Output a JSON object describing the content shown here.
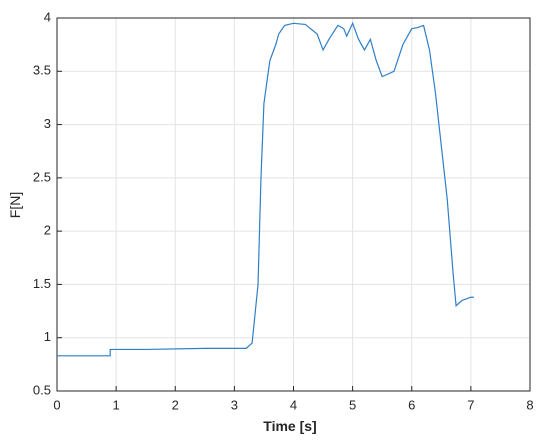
{
  "chart_data": {
    "type": "line",
    "xlabel": "Time [s]",
    "ylabel": "F[N]",
    "xlim": [
      0,
      8
    ],
    "ylim": [
      0.5,
      4
    ],
    "xticks": [
      0,
      1,
      2,
      3,
      4,
      5,
      6,
      7,
      8
    ],
    "yticks": [
      0.5,
      1,
      1.5,
      2,
      2.5,
      3,
      3.5,
      4
    ],
    "grid": true,
    "series": [
      {
        "color": "#2f7fc8",
        "x": [
          0,
          0.9,
          0.9,
          1.5,
          2.5,
          3.2,
          3.3,
          3.4,
          3.45,
          3.5,
          3.6,
          3.7,
          3.75,
          3.85,
          4.0,
          4.2,
          4.4,
          4.5,
          4.6,
          4.75,
          4.85,
          4.9,
          5.0,
          5.1,
          5.2,
          5.3,
          5.4,
          5.5,
          5.7,
          5.85,
          6.0,
          6.1,
          6.2,
          6.3,
          6.4,
          6.5,
          6.6,
          6.7,
          6.75,
          6.85,
          7.0,
          7.05
        ],
        "values": [
          0.83,
          0.83,
          0.89,
          0.89,
          0.9,
          0.9,
          0.95,
          1.5,
          2.5,
          3.2,
          3.6,
          3.75,
          3.85,
          3.93,
          3.95,
          3.94,
          3.85,
          3.7,
          3.8,
          3.93,
          3.9,
          3.83,
          3.95,
          3.8,
          3.7,
          3.8,
          3.6,
          3.45,
          3.5,
          3.75,
          3.9,
          3.91,
          3.93,
          3.7,
          3.3,
          2.8,
          2.3,
          1.6,
          1.3,
          1.35,
          1.38,
          1.38
        ]
      }
    ]
  }
}
